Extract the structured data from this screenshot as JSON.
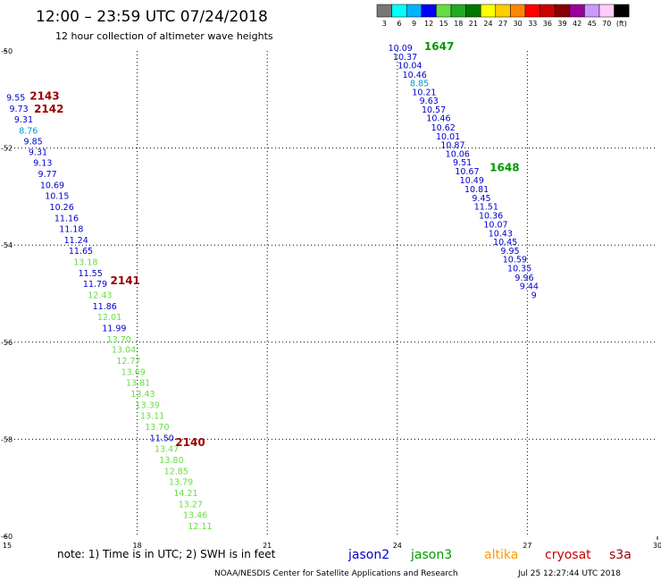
{
  "header": {
    "title": "12:00 – 23:59 UTC 07/24/2018",
    "subtitle": "12 hour collection of altimeter wave heights"
  },
  "scale": {
    "labels": [
      "3",
      "6",
      "9",
      "12",
      "15",
      "18",
      "21",
      "24",
      "27",
      "30",
      "33",
      "36",
      "39",
      "42",
      "45",
      "70",
      "(ft)"
    ],
    "colors": [
      "#777777",
      "#00ffff",
      "#00b4ff",
      "#0000ff",
      "#66dd44",
      "#22aa22",
      "#007700",
      "#ffff00",
      "#ffcc00",
      "#ff8800",
      "#ff0000",
      "#cc0000",
      "#880000",
      "#990099",
      "#cc99ff",
      "#ffccff",
      "#000000"
    ]
  },
  "footer": {
    "note": "note: 1) Time is in UTC; 2) SWH is in feet",
    "legend": [
      {
        "label": "jason2",
        "color": "#0000cc"
      },
      {
        "label": "jason3",
        "color": "#009900"
      },
      {
        "label": "altika",
        "color": "#ff9900"
      },
      {
        "label": "cryosat",
        "color": "#cc0000"
      },
      {
        "label": "s3a",
        "color": "#990000"
      }
    ],
    "credit": "NOAA/NESDIS Center for Satellite Applications and Research",
    "timestamp": "Jul 25 12:27:44 UTC 2018"
  },
  "chart_data": {
    "type": "scatter",
    "xlim": [
      15,
      30
    ],
    "ylim": [
      -60,
      -50
    ],
    "x_ticks": [
      15,
      18,
      21,
      24,
      27,
      30
    ],
    "y_ticks": [
      -50,
      -52,
      -54,
      -56,
      -58,
      -60
    ],
    "grid": true,
    "tracks": [
      {
        "points": [
          {
            "x": 15.2,
            "y": -51.02,
            "label": "9.55",
            "color": "#0000cc"
          },
          {
            "x": 15.27,
            "y": -51.25,
            "label": "9.73",
            "color": "#0000cc"
          },
          {
            "x": 15.38,
            "y": -51.47,
            "label": "9.31",
            "color": "#0000cc"
          },
          {
            "x": 15.49,
            "y": -51.7,
            "label": "8.76",
            "color": "#0099cc"
          },
          {
            "x": 15.6,
            "y": -51.92,
            "label": "9.85",
            "color": "#0000cc"
          },
          {
            "x": 15.71,
            "y": -52.15,
            "label": "9.31",
            "color": "#0000cc"
          },
          {
            "x": 15.82,
            "y": -52.37,
            "label": "9.13",
            "color": "#0000cc"
          },
          {
            "x": 15.93,
            "y": -52.6,
            "label": "9.77",
            "color": "#0000cc"
          },
          {
            "x": 16.04,
            "y": -52.83,
            "label": "10.69",
            "color": "#0000cc"
          },
          {
            "x": 16.15,
            "y": -53.05,
            "label": "10.15",
            "color": "#0000cc"
          },
          {
            "x": 16.26,
            "y": -53.28,
            "label": "10.26",
            "color": "#0000cc"
          },
          {
            "x": 16.37,
            "y": -53.51,
            "label": "11.16",
            "color": "#0000cc"
          },
          {
            "x": 16.48,
            "y": -53.73,
            "label": "11.18",
            "color": "#0000cc"
          },
          {
            "x": 16.59,
            "y": -53.96,
            "label": "11.24",
            "color": "#0000cc"
          },
          {
            "x": 16.7,
            "y": -54.18,
            "label": "11.65",
            "color": "#0000cc"
          },
          {
            "x": 16.81,
            "y": -54.41,
            "label": "13.18",
            "color": "#66dd44"
          },
          {
            "x": 16.92,
            "y": -54.64,
            "label": "11.55",
            "color": "#0000cc"
          },
          {
            "x": 17.03,
            "y": -54.86,
            "label": "11.79",
            "color": "#0000cc"
          },
          {
            "x": 17.14,
            "y": -55.09,
            "label": "12.43",
            "color": "#66dd44"
          },
          {
            "x": 17.25,
            "y": -55.32,
            "label": "11.86",
            "color": "#0000cc"
          },
          {
            "x": 17.36,
            "y": -55.54,
            "label": "12.01",
            "color": "#66dd44"
          },
          {
            "x": 17.47,
            "y": -55.77,
            "label": "11.99",
            "color": "#0000cc"
          },
          {
            "x": 17.58,
            "y": -56.0,
            "label": "13.70",
            "color": "#66dd44"
          },
          {
            "x": 17.69,
            "y": -56.22,
            "label": "13.04",
            "color": "#66dd44"
          },
          {
            "x": 17.8,
            "y": -56.45,
            "label": "12.77",
            "color": "#66dd44"
          },
          {
            "x": 17.91,
            "y": -56.68,
            "label": "13.69",
            "color": "#66dd44"
          },
          {
            "x": 18.02,
            "y": -56.9,
            "label": "13.81",
            "color": "#66dd44"
          },
          {
            "x": 18.13,
            "y": -57.13,
            "label": "13.43",
            "color": "#66dd44"
          },
          {
            "x": 18.24,
            "y": -57.36,
            "label": "13.39",
            "color": "#66dd44"
          },
          {
            "x": 18.35,
            "y": -57.58,
            "label": "13.11",
            "color": "#66dd44"
          },
          {
            "x": 18.46,
            "y": -57.81,
            "label": "13.70",
            "color": "#66dd44"
          },
          {
            "x": 18.57,
            "y": -58.04,
            "label": "11.50",
            "color": "#0000cc"
          },
          {
            "x": 18.68,
            "y": -58.26,
            "label": "13.47",
            "color": "#66dd44"
          },
          {
            "x": 18.79,
            "y": -58.49,
            "label": "13.80",
            "color": "#66dd44"
          },
          {
            "x": 18.9,
            "y": -58.72,
            "label": "12.85",
            "color": "#66dd44"
          },
          {
            "x": 19.01,
            "y": -58.94,
            "label": "13.79",
            "color": "#66dd44"
          },
          {
            "x": 19.12,
            "y": -59.17,
            "label": "14.21",
            "color": "#66dd44"
          },
          {
            "x": 19.23,
            "y": -59.4,
            "label": "13.27",
            "color": "#66dd44"
          },
          {
            "x": 19.34,
            "y": -59.62,
            "label": "13.46",
            "color": "#66dd44"
          },
          {
            "x": 19.45,
            "y": -59.85,
            "label": "12.11",
            "color": "#66dd44"
          }
        ],
        "times": [
          {
            "x": 15.52,
            "y": -51.0,
            "label": "2143",
            "color": "#990000"
          },
          {
            "x": 15.62,
            "y": -51.27,
            "label": "2142",
            "color": "#990000"
          },
          {
            "x": 17.38,
            "y": -54.81,
            "label": "2141",
            "color": "#990000"
          },
          {
            "x": 18.88,
            "y": -58.14,
            "label": "2140",
            "color": "#990000"
          }
        ]
      },
      {
        "points": [
          {
            "x": 24.07,
            "y": -50.0,
            "label": "10.09",
            "color": "#0000cc"
          },
          {
            "x": 24.18,
            "y": -50.18,
            "label": "10.37",
            "color": "#0000cc"
          },
          {
            "x": 24.29,
            "y": -50.36,
            "label": "10.04",
            "color": "#0000cc"
          },
          {
            "x": 24.4,
            "y": -50.55,
            "label": "10.46",
            "color": "#0000cc"
          },
          {
            "x": 24.51,
            "y": -50.73,
            "label": "8.85",
            "color": "#0099cc"
          },
          {
            "x": 24.62,
            "y": -50.91,
            "label": "10.21",
            "color": "#0000cc"
          },
          {
            "x": 24.73,
            "y": -51.09,
            "label": "9.63",
            "color": "#0000cc"
          },
          {
            "x": 24.84,
            "y": -51.27,
            "label": "10.57",
            "color": "#0000cc"
          },
          {
            "x": 24.95,
            "y": -51.45,
            "label": "10.46",
            "color": "#0000cc"
          },
          {
            "x": 25.06,
            "y": -51.64,
            "label": "10.62",
            "color": "#0000cc"
          },
          {
            "x": 25.17,
            "y": -51.82,
            "label": "10.01",
            "color": "#0000cc"
          },
          {
            "x": 25.28,
            "y": -52.0,
            "label": "10.87",
            "color": "#0000cc"
          },
          {
            "x": 25.39,
            "y": -52.18,
            "label": "10.06",
            "color": "#0000cc"
          },
          {
            "x": 25.5,
            "y": -52.36,
            "label": "9.51",
            "color": "#0000cc"
          },
          {
            "x": 25.61,
            "y": -52.54,
            "label": "10.67",
            "color": "#0000cc"
          },
          {
            "x": 25.72,
            "y": -52.73,
            "label": "10.49",
            "color": "#0000cc"
          },
          {
            "x": 25.83,
            "y": -52.91,
            "label": "10.81",
            "color": "#0000cc"
          },
          {
            "x": 25.94,
            "y": -53.09,
            "label": "9.45",
            "color": "#0000cc"
          },
          {
            "x": 26.05,
            "y": -53.27,
            "label": "11.51",
            "color": "#0000cc"
          },
          {
            "x": 26.16,
            "y": -53.45,
            "label": "10.36",
            "color": "#0000cc"
          },
          {
            "x": 26.27,
            "y": -53.64,
            "label": "10.07",
            "color": "#0000cc"
          },
          {
            "x": 26.38,
            "y": -53.82,
            "label": "10.43",
            "color": "#0000cc"
          },
          {
            "x": 26.49,
            "y": -54.0,
            "label": "10.45",
            "color": "#0000cc"
          },
          {
            "x": 26.6,
            "y": -54.18,
            "label": "9.95",
            "color": "#0000cc"
          },
          {
            "x": 26.71,
            "y": -54.36,
            "label": "10.59",
            "color": "#0000cc"
          },
          {
            "x": 26.82,
            "y": -54.54,
            "label": "10.35",
            "color": "#0000cc"
          },
          {
            "x": 26.93,
            "y": -54.73,
            "label": "9.96",
            "color": "#0000cc"
          },
          {
            "x": 27.04,
            "y": -54.91,
            "label": "9.44",
            "color": "#0000cc"
          },
          {
            "x": 27.15,
            "y": -55.09,
            "label": "9",
            "color": "#0000cc"
          }
        ],
        "times": [
          {
            "x": 24.62,
            "y": -49.98,
            "label": "1647",
            "color": "#009900"
          },
          {
            "x": 26.13,
            "y": -52.48,
            "label": "1648",
            "color": "#009900"
          }
        ]
      }
    ]
  }
}
